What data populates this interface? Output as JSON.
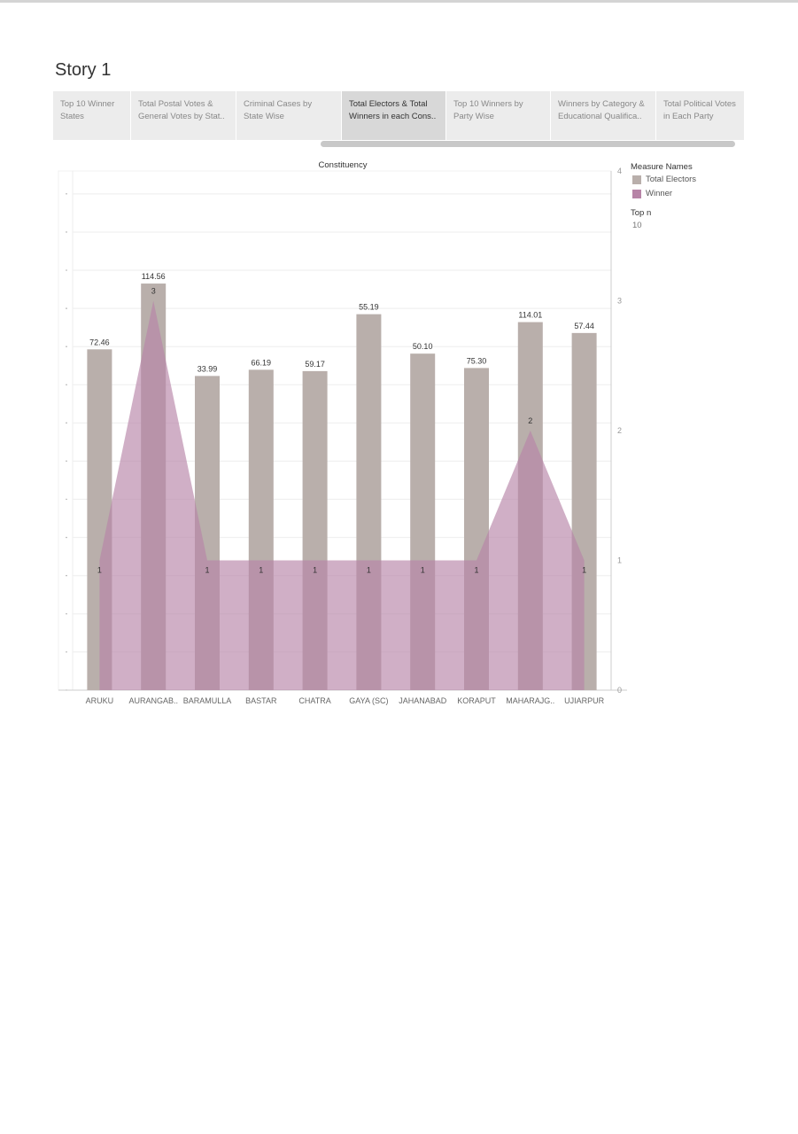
{
  "story": {
    "title": "Story 1"
  },
  "tabs": [
    {
      "line1": "Top 10 Winner",
      "line2": "States",
      "active": false
    },
    {
      "line1": "Total Postal Votes &",
      "line2": "General Votes by Stat..",
      "active": false
    },
    {
      "line1": "Criminal Cases by",
      "line2": "State Wise",
      "active": false
    },
    {
      "line1": "Total Electors & Total",
      "line2": "Winners in each Cons..",
      "active": true
    },
    {
      "line1": "Top 10 Winners by",
      "line2": "Party Wise",
      "active": false
    },
    {
      "line1": "Winners by Category &",
      "line2": "Educational Qualifica..",
      "active": false
    },
    {
      "line1": "Total Political Votes",
      "line2": "in Each Party",
      "active": false
    }
  ],
  "legend": {
    "title": "Measure Names",
    "items": [
      {
        "label": "Total Electors",
        "color": "#b9afab"
      },
      {
        "label": "Winner",
        "color": "#b784a7"
      }
    ],
    "topn_title": "Top n",
    "topn_value": "10"
  },
  "colors": {
    "bar": "#b9afab",
    "area": "#b784a7",
    "grid": "#eeeeee",
    "axis": "#cccccc"
  },
  "chart_data": {
    "type": "bar",
    "title": "Constituency",
    "categories": [
      "ARUKU",
      "AURANGAB..",
      "BARAMULLA",
      "BASTAR",
      "CHATRA",
      "GAYA (SC)",
      "JAHANABAD",
      "KORAPUT",
      "MAHARAJG..",
      "UJIARPUR"
    ],
    "series": [
      {
        "name": "Total Electors",
        "type": "bar",
        "axis": "left",
        "values": [
          1772.46,
          2114.56,
          1633.99,
          1666.19,
          1659.17,
          1955.19,
          1750.1,
          1675.3,
          1914.01,
          1857.44
        ],
        "labels": [
          "72.46",
          "114.56",
          "33.99",
          "66.19",
          "59.17",
          "55.19",
          "50.10",
          "75.30",
          "114.01",
          "57.44"
        ]
      },
      {
        "name": "Winner",
        "type": "area",
        "axis": "right",
        "values": [
          1,
          3,
          1,
          1,
          1,
          1,
          1,
          1,
          2,
          1
        ],
        "labels": [
          "1",
          "3",
          "1",
          "1",
          "1",
          "1",
          "1",
          "1",
          "2",
          "1"
        ]
      }
    ],
    "left_ylim": [
      0,
      2700
    ],
    "right_ylim": [
      0,
      4
    ],
    "right_ticks": [
      "0",
      "1",
      "2",
      "3",
      "4"
    ],
    "grid": true
  }
}
